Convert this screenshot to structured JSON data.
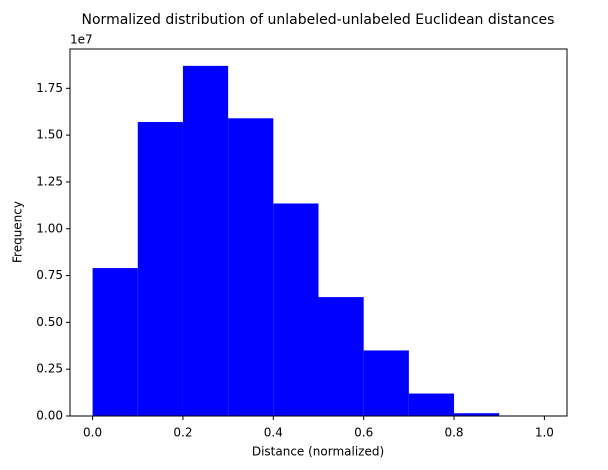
{
  "chart_data": {
    "type": "histogram",
    "title": "Normalized distribution of unlabeled-unlabeled Euclidean distances",
    "x_label": "Distance (normalized)",
    "y_label": "Frequency",
    "y_offset_label": "1e7",
    "bins": [
      0,
      0.1,
      0.2,
      0.3,
      0.4,
      0.5,
      0.6,
      0.7,
      0.8,
      0.9,
      1.0
    ],
    "values": [
      0.79,
      1.57,
      1.87,
      1.59,
      1.135,
      0.635,
      0.35,
      0.12,
      0.015,
      0
    ],
    "color": "#0000ff",
    "xlim": [
      -0.05,
      1.05
    ],
    "xticks": [
      {
        "value": 0,
        "label": "0.0"
      },
      0.2,
      0.4,
      0.6,
      0.8,
      {
        "value": 1,
        "label": "1.0"
      }
    ],
    "ylim": [
      0,
      1.96
    ],
    "yticks": [
      {
        "value": 0,
        "label": "0.00"
      },
      0.25,
      {
        "value": 0.5,
        "label": "0.50"
      },
      0.75,
      {
        "value": 1,
        "label": "1.00"
      },
      1.25,
      {
        "value": 1.5,
        "label": "1.50"
      },
      1.75
    ],
    "grid": false
  }
}
